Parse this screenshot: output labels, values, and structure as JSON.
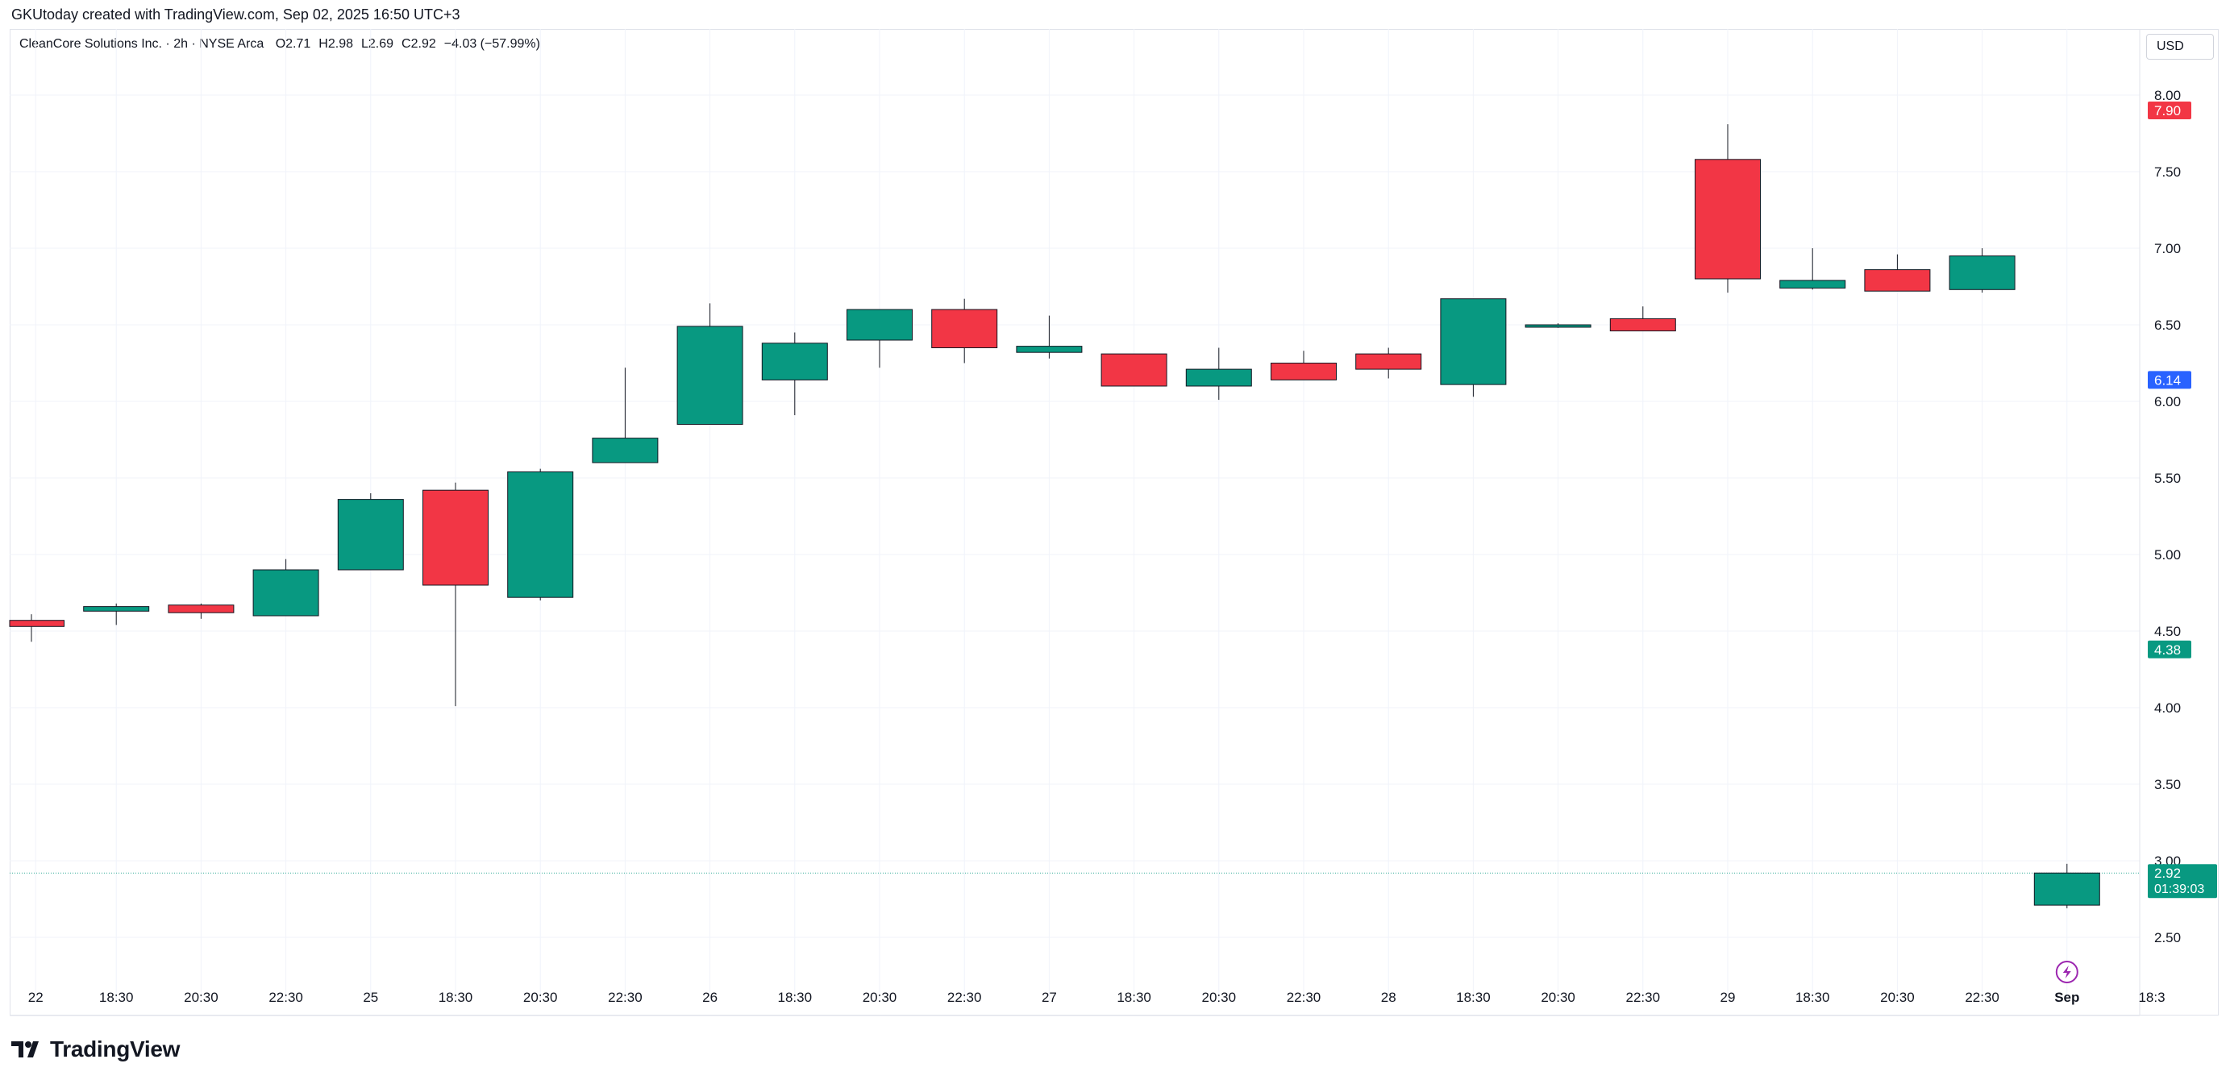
{
  "header": {
    "attribution": "GKUtoday created with TradingView.com, Sep 02, 2025 16:50 UTC+3"
  },
  "legend": {
    "symbol": "CleanCore Solutions Inc. · 2h · NYSE Arca",
    "open": "O2.71",
    "high": "H2.98",
    "low": "L2.69",
    "close": "C2.92",
    "change": "−4.03 (−57.99%)"
  },
  "currency": "USD",
  "brand": {
    "name": "TradingView"
  },
  "colors": {
    "up": "#089981",
    "down": "#f23645",
    "grid": "#f0f3fa",
    "axis_text": "#131722",
    "blue_label": "#2962ff",
    "current_line": "#089981"
  },
  "chart_data": {
    "type": "candlestick",
    "title": "CleanCore Solutions Inc. · 2h · NYSE Arca",
    "y_axis": {
      "min": 2.25,
      "max": 8.35,
      "ticks": [
        8.0,
        7.5,
        7.0,
        6.5,
        6.0,
        5.5,
        5.0,
        4.5,
        4.0,
        3.5,
        3.0,
        2.5
      ]
    },
    "x_labels": [
      {
        "label": "22",
        "slot": 0.05
      },
      {
        "label": "18:30",
        "slot": 1
      },
      {
        "label": "20:30",
        "slot": 2
      },
      {
        "label": "22:30",
        "slot": 3
      },
      {
        "label": "25",
        "slot": 4
      },
      {
        "label": "18:30",
        "slot": 5
      },
      {
        "label": "20:30",
        "slot": 6
      },
      {
        "label": "22:30",
        "slot": 7
      },
      {
        "label": "26",
        "slot": 8
      },
      {
        "label": "18:30",
        "slot": 9
      },
      {
        "label": "20:30",
        "slot": 10
      },
      {
        "label": "22:30",
        "slot": 11
      },
      {
        "label": "27",
        "slot": 12
      },
      {
        "label": "18:30",
        "slot": 13
      },
      {
        "label": "20:30",
        "slot": 14
      },
      {
        "label": "22:30",
        "slot": 15
      },
      {
        "label": "28",
        "slot": 16
      },
      {
        "label": "18:30",
        "slot": 17
      },
      {
        "label": "20:30",
        "slot": 18
      },
      {
        "label": "22:30",
        "slot": 19
      },
      {
        "label": "29",
        "slot": 20
      },
      {
        "label": "18:30",
        "slot": 21
      },
      {
        "label": "20:30",
        "slot": 22
      },
      {
        "label": "22:30",
        "slot": 23
      },
      {
        "label": "Sep",
        "slot": 24,
        "bold": true
      },
      {
        "label": "18:3",
        "slot": 25
      }
    ],
    "candles": [
      {
        "slot": 0,
        "o": 4.57,
        "h": 4.61,
        "l": 4.43,
        "c": 4.53
      },
      {
        "slot": 1,
        "o": 4.63,
        "h": 4.68,
        "l": 4.54,
        "c": 4.66
      },
      {
        "slot": 2,
        "o": 4.67,
        "h": 4.68,
        "l": 4.58,
        "c": 4.62
      },
      {
        "slot": 3,
        "o": 4.6,
        "h": 4.97,
        "l": 4.6,
        "c": 4.9
      },
      {
        "slot": 4,
        "o": 4.9,
        "h": 5.4,
        "l": 4.9,
        "c": 5.36
      },
      {
        "slot": 5,
        "o": 5.42,
        "h": 5.47,
        "l": 4.01,
        "c": 4.8
      },
      {
        "slot": 6,
        "o": 4.72,
        "h": 5.56,
        "l": 4.7,
        "c": 5.54
      },
      {
        "slot": 7,
        "o": 5.6,
        "h": 6.22,
        "l": 5.6,
        "c": 5.76
      },
      {
        "slot": 8,
        "o": 5.85,
        "h": 6.64,
        "l": 5.85,
        "c": 6.49
      },
      {
        "slot": 9,
        "o": 6.14,
        "h": 6.45,
        "l": 5.91,
        "c": 6.38
      },
      {
        "slot": 10,
        "o": 6.4,
        "h": 6.6,
        "l": 6.22,
        "c": 6.6
      },
      {
        "slot": 11,
        "o": 6.6,
        "h": 6.67,
        "l": 6.25,
        "c": 6.35
      },
      {
        "slot": 12,
        "o": 6.32,
        "h": 6.56,
        "l": 6.28,
        "c": 6.36
      },
      {
        "slot": 13,
        "o": 6.31,
        "h": 6.31,
        "l": 6.1,
        "c": 6.1
      },
      {
        "slot": 14,
        "o": 6.1,
        "h": 6.35,
        "l": 6.01,
        "c": 6.21
      },
      {
        "slot": 15,
        "o": 6.25,
        "h": 6.33,
        "l": 6.14,
        "c": 6.14
      },
      {
        "slot": 16,
        "o": 6.31,
        "h": 6.35,
        "l": 6.15,
        "c": 6.21
      },
      {
        "slot": 17,
        "o": 6.11,
        "h": 6.67,
        "l": 6.03,
        "c": 6.67
      },
      {
        "slot": 18,
        "o": 6.49,
        "h": 6.51,
        "l": 6.48,
        "c": 6.5
      },
      {
        "slot": 19,
        "o": 6.54,
        "h": 6.62,
        "l": 6.46,
        "c": 6.46
      },
      {
        "slot": 20,
        "o": 7.58,
        "h": 7.81,
        "l": 6.71,
        "c": 6.8
      },
      {
        "slot": 21,
        "o": 6.74,
        "h": 7.0,
        "l": 6.73,
        "c": 6.79
      },
      {
        "slot": 22,
        "o": 6.86,
        "h": 6.96,
        "l": 6.72,
        "c": 6.72
      },
      {
        "slot": 23,
        "o": 6.73,
        "h": 7.0,
        "l": 6.71,
        "c": 6.95
      },
      {
        "slot": 24,
        "o": 2.71,
        "h": 2.98,
        "l": 2.69,
        "c": 2.92
      }
    ],
    "price_labels": [
      {
        "value": 7.9,
        "text": "7.90",
        "kind": "down"
      },
      {
        "value": 6.14,
        "text": "6.14",
        "kind": "blue"
      },
      {
        "value": 4.38,
        "text": "4.38",
        "kind": "up"
      }
    ],
    "current_price": {
      "value": 2.92,
      "text": "2.92",
      "countdown": "01:39:03"
    },
    "marker": {
      "slot": 24,
      "icon": "lightning-bolt-icon"
    }
  }
}
